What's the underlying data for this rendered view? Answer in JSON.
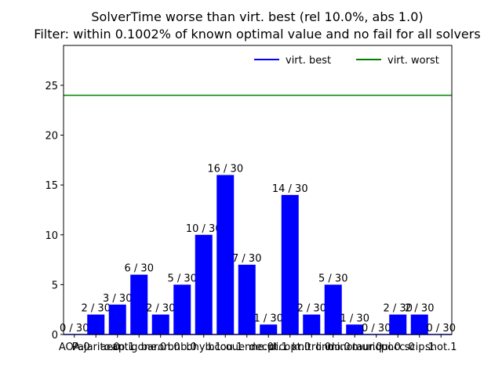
{
  "chart_data": {
    "type": "bar",
    "title": "SolverTime worse than virt. best (rel 10.0%, abs 1.0)",
    "subtitle": "Filter: within 0.1002% of known optimal value and no fail for all solvers",
    "xlabel": "",
    "ylabel": "",
    "ylim": [
      0,
      29
    ],
    "yticks": [
      0,
      5,
      10,
      15,
      20,
      25
    ],
    "grid": false,
    "legend_position": "top-right",
    "categories": [
      "AOA.0",
      "Pajarito.0",
      "aecp.1",
      "antigone.0",
      "baron.0",
      "bnb.0",
      "bhyb.1",
      "bcou.1",
      "couenne.0",
      "decpt.1",
      "dicopt.0",
      "knitro.0",
      "lindo.0",
      "minotaur.0",
      "muriqui.0",
      "pocc.0",
      "scip.1",
      "shot.1"
    ],
    "values": [
      0,
      2,
      3,
      6,
      2,
      5,
      10,
      16,
      7,
      1,
      14,
      2,
      5,
      1,
      0,
      2,
      2,
      0
    ],
    "bar_labels": [
      "0 / 30",
      "2 / 30",
      "3 / 30",
      "6 / 30",
      "2 / 30",
      "5 / 30",
      "10 / 30",
      "16 / 30",
      "7 / 30",
      "1 / 30",
      "14 / 30",
      "2 / 30",
      "5 / 30",
      "1 / 30",
      "0 / 30",
      "2 / 30",
      "2 / 30",
      "0 / 30"
    ],
    "bar_color": "#0000ff",
    "reference_lines": [
      {
        "name": "virt. best",
        "value": 0,
        "color": "#0000ff"
      },
      {
        "name": "virt. worst",
        "value": 24,
        "color": "#008000"
      }
    ]
  }
}
